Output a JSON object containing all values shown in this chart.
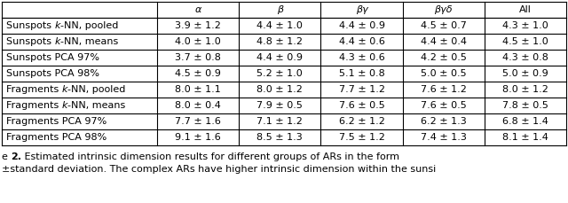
{
  "col_headers": [
    "α",
    "β",
    "βγ",
    "βγδ",
    "All"
  ],
  "row_labels": [
    "Sunspots k-NN, pooled",
    "Sunspots k-NN, means",
    "Sunspots PCA 97%",
    "Sunspots PCA 98%",
    "Fragments k-NN, pooled",
    "Fragments k-NN, means",
    "Fragments PCA 97%",
    "Fragments PCA 98%"
  ],
  "cell_data": [
    [
      "3.9 ± 1.2",
      "4.4 ± 1.0",
      "4.4 ± 0.9",
      "4.5 ± 0.7",
      "4.3 ± 1.0"
    ],
    [
      "4.0 ± 1.0",
      "4.8 ± 1.2",
      "4.4 ± 0.6",
      "4.4 ± 0.4",
      "4.5 ± 1.0"
    ],
    [
      "3.7 ± 0.8",
      "4.4 ± 0.9",
      "4.3 ± 0.6",
      "4.2 ± 0.5",
      "4.3 ± 0.8"
    ],
    [
      "4.5 ± 0.9",
      "5.2 ± 1.0",
      "5.1 ± 0.8",
      "5.0 ± 0.5",
      "5.0 ± 0.9"
    ],
    [
      "8.0 ± 1.1",
      "8.0 ± 1.2",
      "7.7 ± 1.2",
      "7.6 ± 1.2",
      "8.0 ± 1.2"
    ],
    [
      "8.0 ± 0.4",
      "7.9 ± 0.5",
      "7.6 ± 0.5",
      "7.6 ± 0.5",
      "7.8 ± 0.5"
    ],
    [
      "7.7 ± 1.6",
      "7.1 ± 1.2",
      "6.2 ± 1.2",
      "6.2 ± 1.3",
      "6.8 ± 1.4"
    ],
    [
      "9.1 ± 1.6",
      "8.5 ± 1.3",
      "7.5 ± 1.2",
      "7.4 ± 1.3",
      "8.1 ± 1.4"
    ]
  ],
  "caption_prefix": "e ",
  "caption_bold": "2.",
  "caption_rest": " Estimated intrinsic dimension results for different groups of ARs in the form",
  "caption_line2": "±standard deviation. The complex ARs have higher intrinsic dimension within the sunsi",
  "bg_color": "#ffffff",
  "text_color": "#000000",
  "border_color": "#000000",
  "figsize": [
    6.4,
    2.29
  ],
  "dpi": 100,
  "table_font_size": 8.0,
  "caption_font_size": 8.0
}
